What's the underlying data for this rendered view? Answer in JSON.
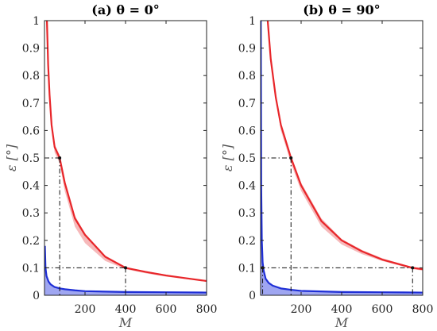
{
  "chart_data": [
    {
      "type": "line",
      "title": "(a) θ = 0°",
      "xlabel": "M",
      "ylabel": "ε [°]",
      "xlim": [
        0,
        800
      ],
      "ylim": [
        0,
        1
      ],
      "xticks": [
        "200",
        "400",
        "600",
        "800"
      ],
      "yticks": [
        "0",
        "0.1",
        "0.2",
        "0.3",
        "0.4",
        "0.5",
        "0.6",
        "0.7",
        "0.8",
        "0.9",
        "1"
      ],
      "grid": false,
      "series": [
        {
          "color": "#e8262a",
          "band_color": "#f08a8c",
          "x": [
            12,
            18,
            25,
            35,
            50,
            75,
            100,
            150,
            200,
            300,
            400,
            500,
            600,
            700,
            800
          ],
          "y": [
            1.0,
            0.84,
            0.73,
            0.62,
            0.54,
            0.5,
            0.41,
            0.28,
            0.22,
            0.14,
            0.1,
            0.085,
            0.072,
            0.062,
            0.052
          ],
          "band_lower": [
            1.0,
            0.82,
            0.71,
            0.6,
            0.52,
            0.48,
            0.38,
            0.25,
            0.19,
            0.125,
            0.095,
            0.08,
            0.068,
            0.059,
            0.05
          ],
          "band_upper": [
            1.0,
            0.85,
            0.74,
            0.63,
            0.55,
            0.51,
            0.42,
            0.29,
            0.225,
            0.145,
            0.103,
            0.088,
            0.075,
            0.064,
            0.054
          ]
        },
        {
          "color": "#1f2fd6",
          "band_color": "#5f6be8",
          "x": [
            2,
            5,
            10,
            20,
            30,
            50,
            75,
            100,
            150,
            200,
            400,
            600,
            800
          ],
          "y": [
            0.18,
            0.1,
            0.07,
            0.05,
            0.04,
            0.03,
            0.025,
            0.022,
            0.018,
            0.015,
            0.012,
            0.011,
            0.01
          ],
          "band_lower": [
            0,
            0,
            0,
            0,
            0,
            0,
            0,
            0,
            0,
            0,
            0,
            0,
            0
          ],
          "band_upper": [
            0.18,
            0.1,
            0.07,
            0.05,
            0.04,
            0.03,
            0.025,
            0.022,
            0.018,
            0.015,
            0.012,
            0.011,
            0.01
          ]
        }
      ],
      "reference_lines": [
        {
          "x": 75,
          "y": 0.5
        },
        {
          "x": 400,
          "y": 0.1
        }
      ]
    },
    {
      "type": "line",
      "title": "(b) θ = 90°",
      "xlabel": "M",
      "ylabel": "ε [°]",
      "xlim": [
        0,
        800
      ],
      "ylim": [
        0,
        1
      ],
      "xticks": [
        "200",
        "400",
        "600",
        "800"
      ],
      "yticks": [
        "0",
        "0.1",
        "0.2",
        "0.3",
        "0.4",
        "0.5",
        "0.6",
        "0.7",
        "0.8",
        "0.9",
        "1"
      ],
      "grid": false,
      "series": [
        {
          "color": "#e8262a",
          "band_color": "#f08a8c",
          "x": [
            35,
            50,
            75,
            100,
            150,
            200,
            300,
            400,
            500,
            600,
            700,
            750,
            800
          ],
          "y": [
            1.0,
            0.86,
            0.72,
            0.62,
            0.5,
            0.4,
            0.27,
            0.2,
            0.16,
            0.13,
            0.11,
            0.1,
            0.095
          ],
          "band_lower": [
            1.0,
            0.85,
            0.71,
            0.6,
            0.48,
            0.38,
            0.25,
            0.185,
            0.15,
            0.125,
            0.105,
            0.095,
            0.09
          ],
          "band_upper": [
            1.0,
            0.87,
            0.73,
            0.63,
            0.51,
            0.41,
            0.28,
            0.205,
            0.165,
            0.135,
            0.113,
            0.103,
            0.098
          ]
        },
        {
          "color": "#1f2fd6",
          "band_color": "#5f6be8",
          "x": [
            1,
            3,
            6,
            10,
            15,
            25,
            40,
            60,
            100,
            150,
            200,
            400,
            600,
            800
          ],
          "y": [
            1.0,
            0.4,
            0.2,
            0.12,
            0.09,
            0.06,
            0.045,
            0.035,
            0.025,
            0.02,
            0.016,
            0.012,
            0.011,
            0.01
          ],
          "band_lower": [
            0,
            0,
            0,
            0,
            0,
            0,
            0,
            0,
            0,
            0,
            0,
            0,
            0,
            0
          ],
          "band_upper": [
            1.0,
            0.4,
            0.2,
            0.12,
            0.09,
            0.06,
            0.045,
            0.035,
            0.025,
            0.02,
            0.016,
            0.012,
            0.011,
            0.01
          ]
        }
      ],
      "reference_lines": [
        {
          "x": 150,
          "y": 0.5
        },
        {
          "x": 750,
          "y": 0.1
        },
        {
          "x": 10,
          "y": 0.1
        }
      ]
    }
  ]
}
